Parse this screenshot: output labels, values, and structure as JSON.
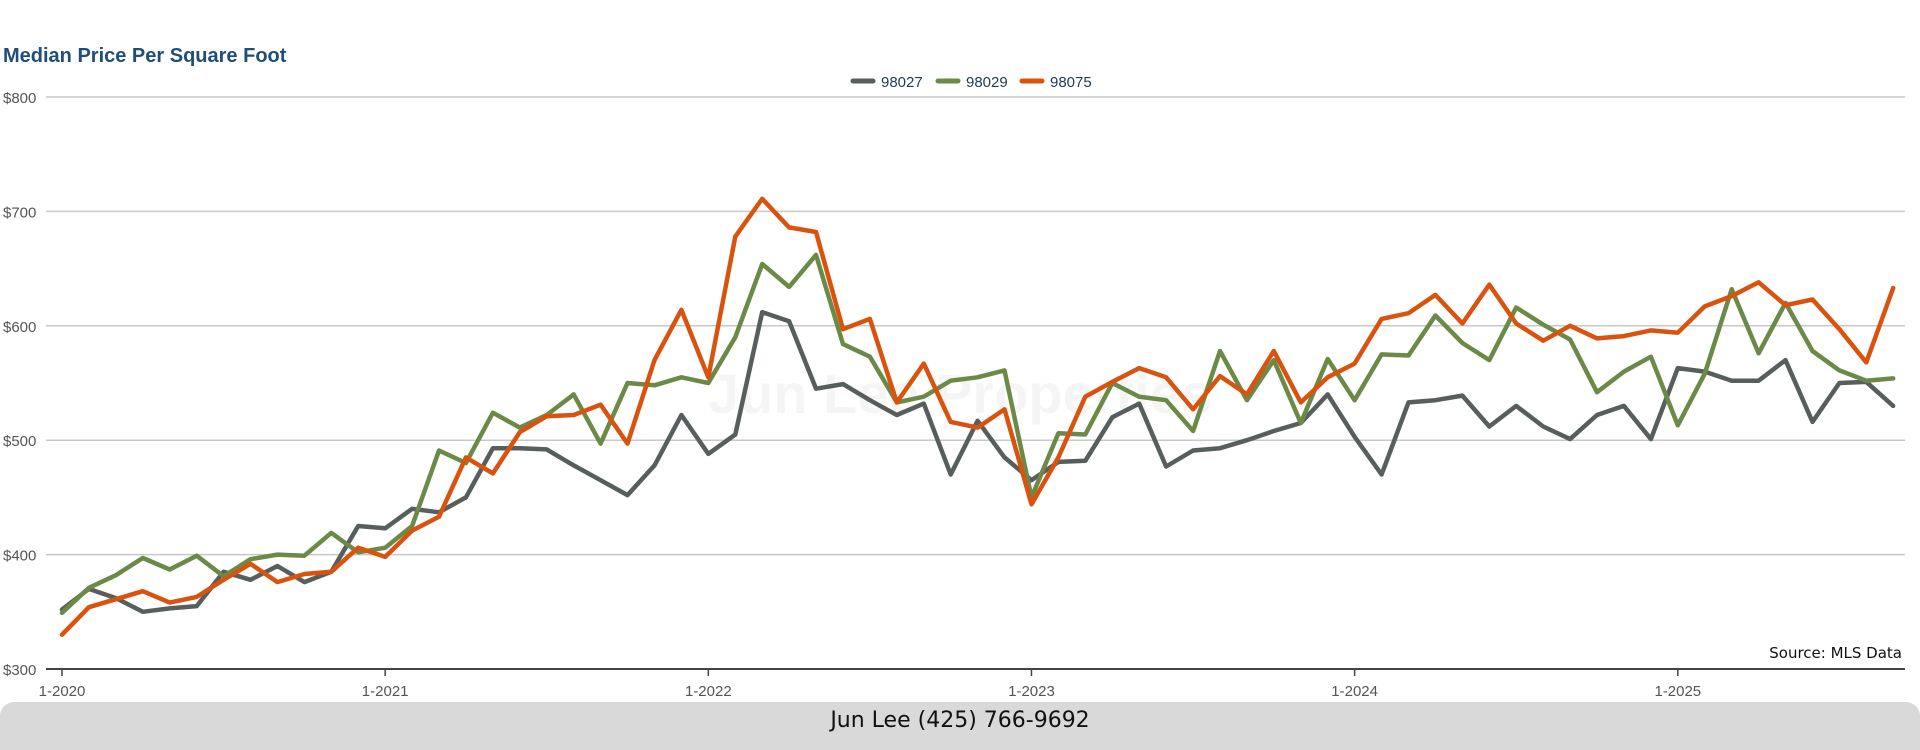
{
  "footer": {
    "text": "Jun Lee (425) 766-9692"
  },
  "watermark": "Jun Lee Properties",
  "colors": {
    "98027": "#585e5e",
    "98029": "#6b8a47",
    "98075": "#d9530f",
    "title": "#1f4e79"
  },
  "chart_data": {
    "type": "line",
    "title": "Median Price Per Square Foot",
    "source": "Source: MLS Data",
    "legend_position": "top-center",
    "grid": true,
    "ylim": [
      300,
      800
    ],
    "y_ticks": [
      "$800",
      "$700",
      "$600",
      "$500",
      "$400",
      "$300"
    ],
    "y_tick_values": [
      800,
      700,
      600,
      500,
      400,
      300
    ],
    "x_ticks": [
      "1-2020",
      "1-2021",
      "1-2022",
      "1-2023",
      "1-2024",
      "1-2025"
    ],
    "x_tick_index": [
      0,
      12,
      24,
      36,
      48,
      60
    ],
    "x_start": "1-2020",
    "x_interval": "month",
    "series": [
      {
        "name": "98027",
        "color": "#585e5e",
        "values": [
          352,
          370,
          362,
          350,
          353,
          355,
          385,
          378,
          390,
          376,
          385,
          425,
          423,
          440,
          437,
          450,
          493,
          493,
          492,
          478,
          465,
          452,
          478,
          522,
          488,
          505,
          612,
          604,
          545,
          549,
          535,
          522,
          532,
          470,
          517,
          485,
          465,
          481,
          482,
          520,
          532,
          477,
          491,
          493,
          500,
          508,
          515,
          540,
          503,
          470,
          533,
          535,
          539,
          512,
          530,
          512,
          501,
          522,
          530,
          501,
          563,
          560,
          552,
          552,
          570,
          516,
          550,
          551,
          530
        ]
      },
      {
        "name": "98029",
        "color": "#6b8a47",
        "values": [
          349,
          371,
          382,
          397,
          387,
          399,
          381,
          396,
          400,
          399,
          419,
          402,
          406,
          425,
          491,
          480,
          524,
          511,
          522,
          540,
          497,
          550,
          548,
          555,
          550,
          590,
          654,
          634,
          662,
          584,
          573,
          533,
          538,
          552,
          555,
          561,
          450,
          506,
          505,
          550,
          538,
          535,
          508,
          578,
          535,
          570,
          515,
          571,
          535,
          575,
          574,
          609,
          585,
          570,
          616,
          601,
          588,
          542,
          560,
          573,
          513,
          558,
          632,
          576,
          620,
          578,
          561,
          552,
          554
        ]
      },
      {
        "name": "98075",
        "color": "#d9530f",
        "values": [
          330,
          354,
          361,
          368,
          358,
          363,
          378,
          392,
          376,
          383,
          385,
          406,
          398,
          421,
          433,
          485,
          471,
          507,
          521,
          522,
          531,
          497,
          570,
          614,
          555,
          678,
          711,
          686,
          682,
          597,
          606,
          533,
          567,
          516,
          511,
          527,
          444,
          485,
          538,
          551,
          563,
          555,
          527,
          556,
          540,
          578,
          533,
          555,
          567,
          606,
          611,
          627,
          602,
          636,
          602,
          587,
          600,
          589,
          591,
          596,
          594,
          617,
          626,
          638,
          618,
          623,
          597,
          568,
          633
        ]
      }
    ]
  }
}
